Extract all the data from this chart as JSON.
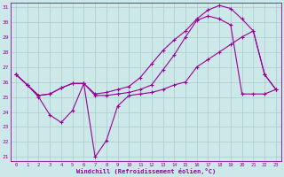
{
  "xlabel": "Windchill (Refroidissement éolien,°C)",
  "background_color": "#cce8e8",
  "grid_color": "#aacccc",
  "line_color": "#990099",
  "xlim": [
    -0.5,
    23.5
  ],
  "ylim": [
    20.7,
    31.3
  ],
  "yticks": [
    21,
    22,
    23,
    24,
    25,
    26,
    27,
    28,
    29,
    30,
    31
  ],
  "xticks": [
    0,
    1,
    2,
    3,
    4,
    5,
    6,
    7,
    8,
    9,
    10,
    11,
    12,
    13,
    14,
    15,
    16,
    17,
    18,
    19,
    20,
    21,
    22,
    23
  ],
  "series_top": [
    26.5,
    25.8,
    25.1,
    25.2,
    25.6,
    25.9,
    25.9,
    25.2,
    25.3,
    25.5,
    25.7,
    26.3,
    27.2,
    28.1,
    28.8,
    29.4,
    30.2,
    30.8,
    31.1,
    30.9,
    30.2,
    29.4,
    26.5,
    25.5
  ],
  "series_mid": [
    26.5,
    25.8,
    25.1,
    25.2,
    25.6,
    25.9,
    25.9,
    25.1,
    25.1,
    25.2,
    25.3,
    25.5,
    25.8,
    26.8,
    27.8,
    29.0,
    30.1,
    30.4,
    30.2,
    29.8,
    25.2,
    25.2,
    25.2,
    25.5
  ],
  "series_low": [
    26.5,
    25.8,
    25.0,
    23.8,
    23.3,
    24.1,
    25.9,
    21.0,
    22.1,
    24.4,
    25.1,
    25.2,
    25.3,
    25.5,
    25.8,
    26.0,
    27.0,
    27.5,
    28.0,
    28.5,
    29.0,
    29.4,
    26.5,
    25.5
  ]
}
